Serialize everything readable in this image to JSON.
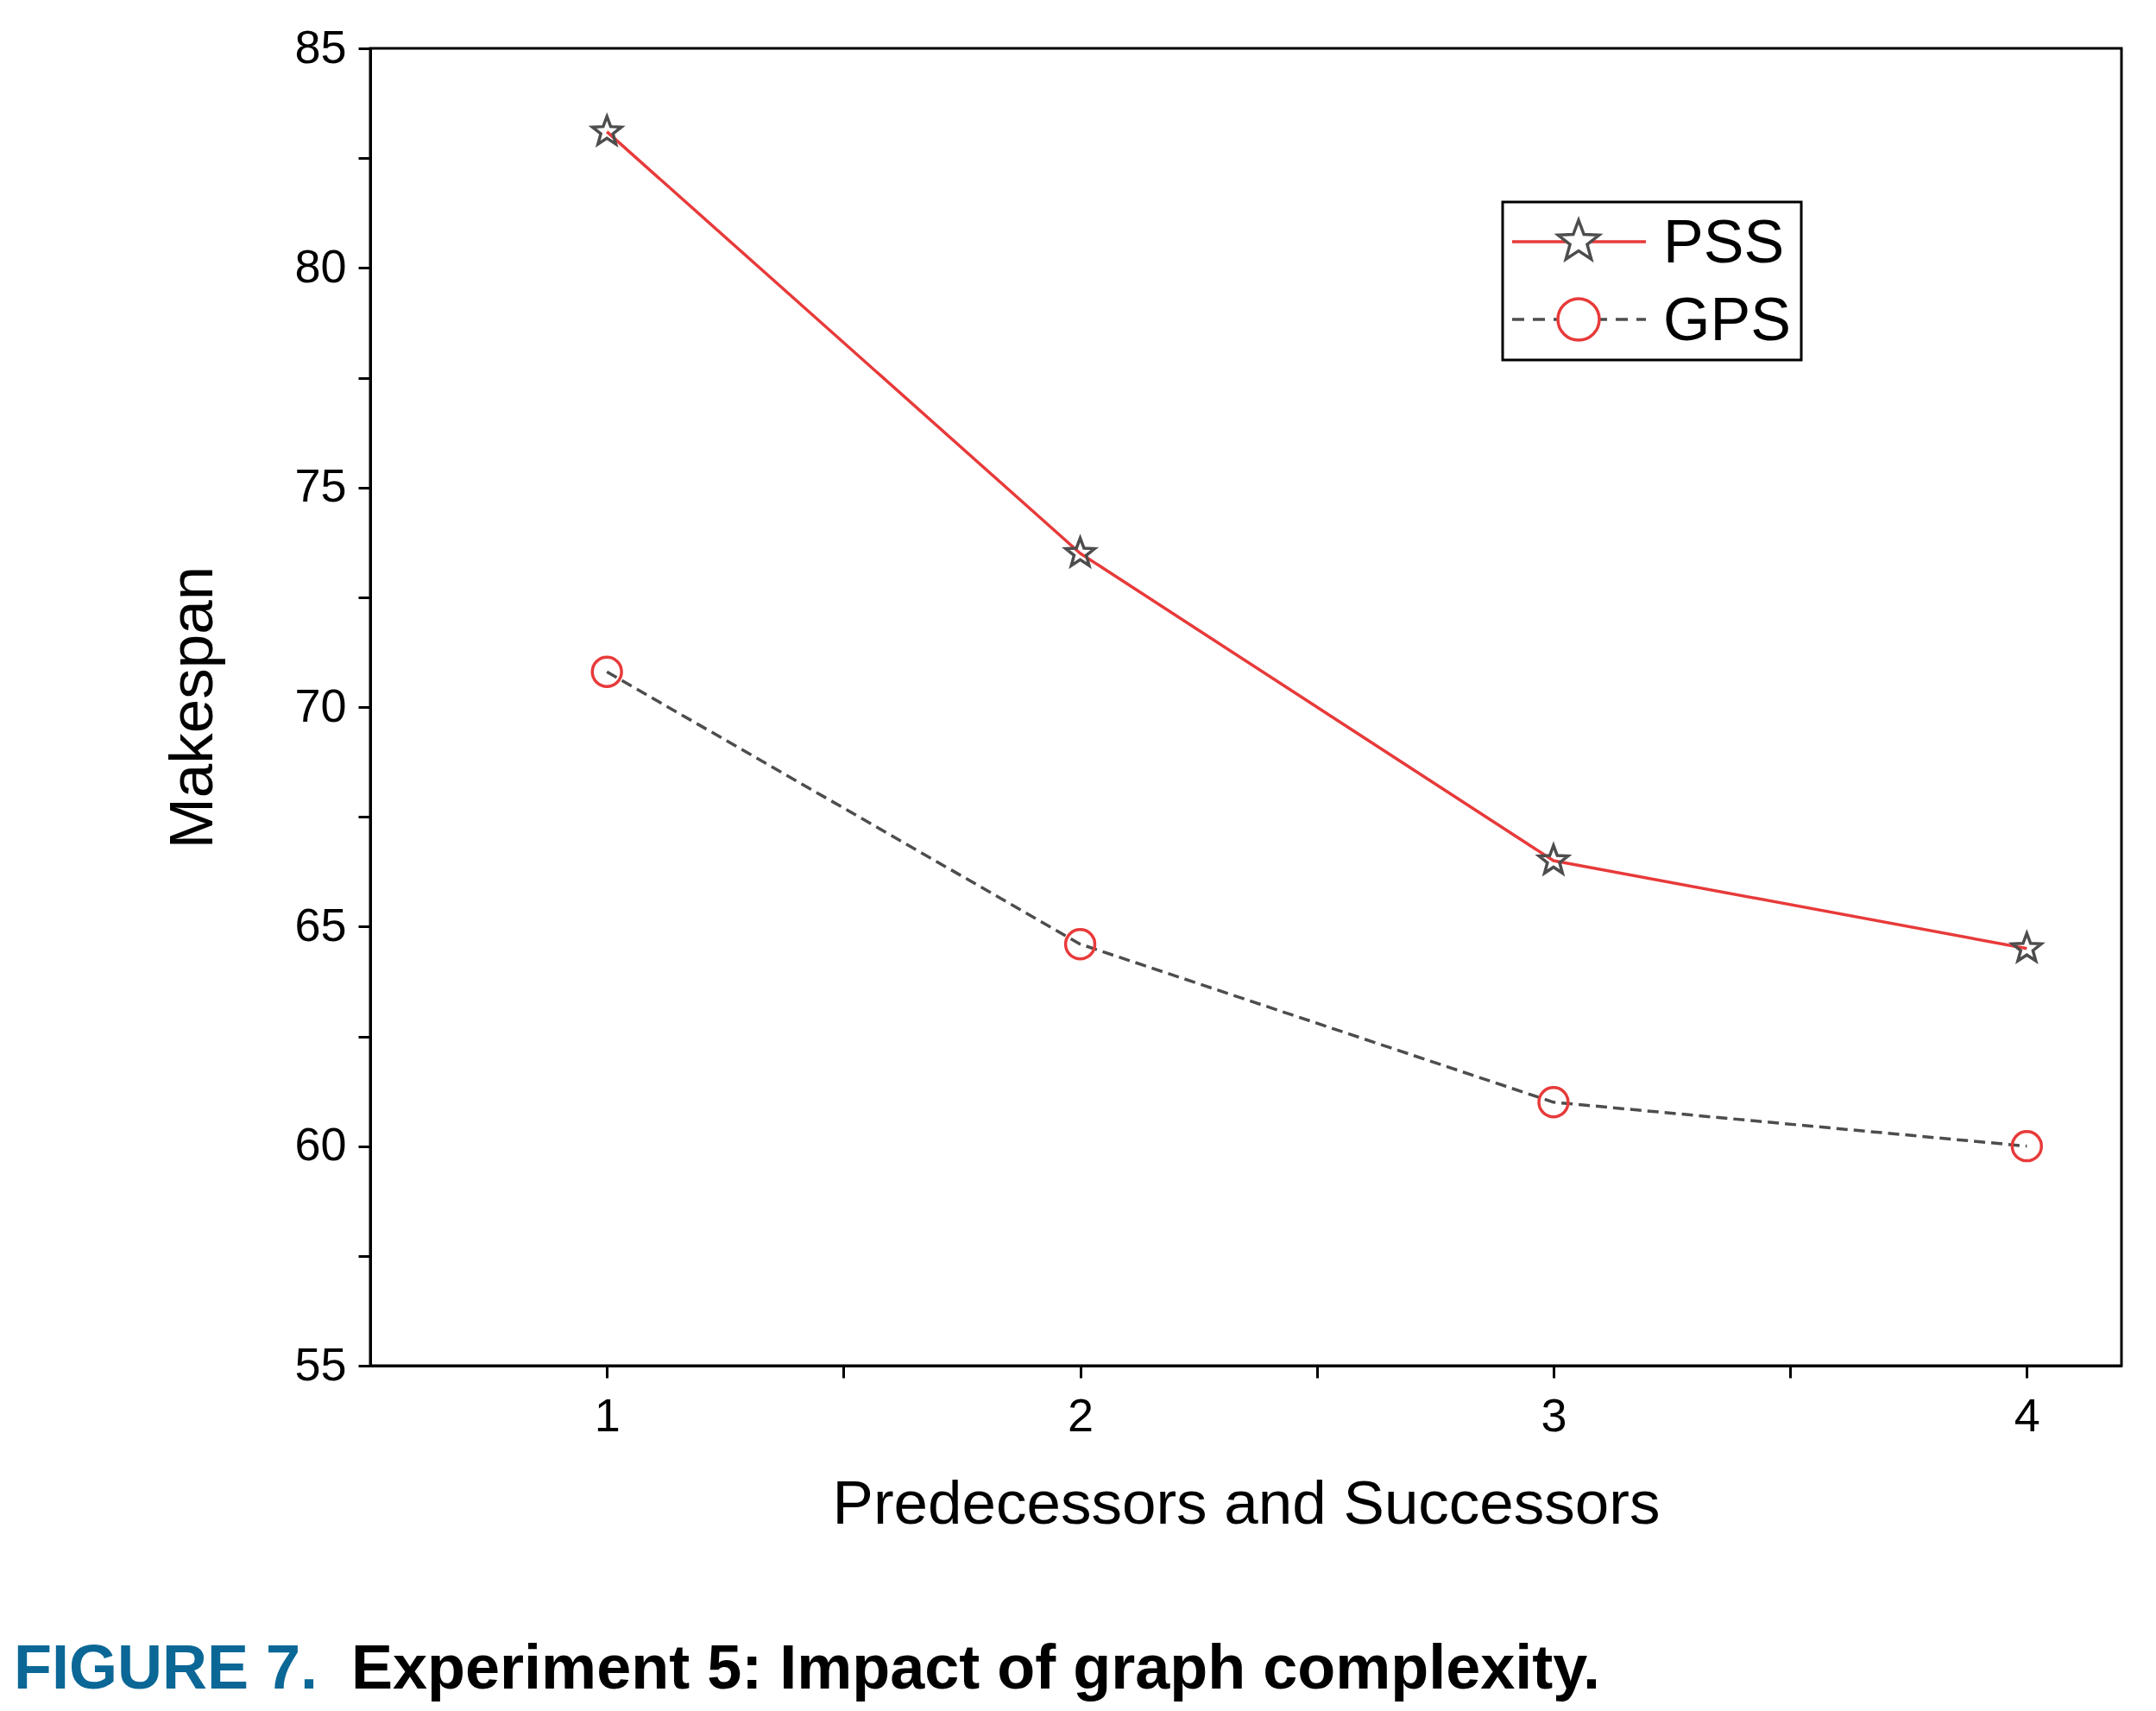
{
  "chart_data": {
    "type": "line",
    "xlabel": "Predecessors and Successors",
    "ylabel": "Makespan",
    "x": [
      1,
      2,
      3,
      4
    ],
    "xlim": [
      0.5,
      4.2
    ],
    "xticks": [
      1,
      {
        "value": 1.5,
        "label": null
      },
      2,
      {
        "value": 2.5,
        "label": null
      },
      3,
      {
        "value": 3.5,
        "label": null
      },
      4
    ],
    "ylim": [
      55,
      85
    ],
    "yticks": [
      55,
      {
        "value": 57.5,
        "label": null
      },
      60,
      {
        "value": 62.5,
        "label": null
      },
      65,
      {
        "value": 67.5,
        "label": null
      },
      70,
      {
        "value": 72.5,
        "label": null
      },
      75,
      {
        "value": 77.5,
        "label": null
      },
      80,
      {
        "value": 82.5,
        "label": null
      },
      85
    ],
    "series": [
      {
        "name": "PSS",
        "color": "#e83a3a",
        "colors": [
          "#4d4d4d",
          "#4d4d4d",
          "#4d4d4d",
          "#4d4d4d"
        ],
        "marker": "star",
        "line_style": "solid",
        "values": [
          83.1,
          73.5,
          66.5,
          64.5
        ]
      },
      {
        "name": "GPS",
        "color": "#4d4d4d",
        "colors": [
          "#e83a3a",
          "#e83a3a",
          "#e83a3a",
          "#e83a3a"
        ],
        "marker": "circle",
        "line_style": "dashed",
        "values": [
          70.8,
          64.6,
          61.0,
          60.0
        ]
      }
    ],
    "legend": "top right",
    "annotations": [
      "FIGURE 7.",
      "Experiment 5: Impact of graph complexity."
    ]
  }
}
